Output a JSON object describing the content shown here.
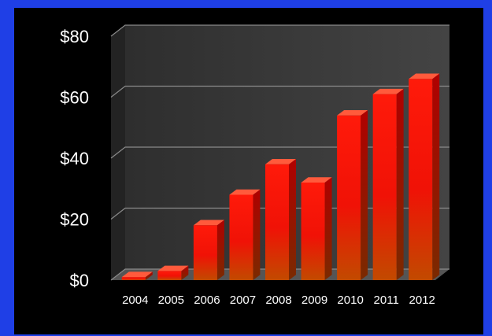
{
  "chart_data": {
    "type": "bar",
    "categories": [
      "2004",
      "2005",
      "2006",
      "2007",
      "2008",
      "2009",
      "2010",
      "2011",
      "2012"
    ],
    "values": [
      1,
      3,
      18,
      28,
      38,
      32,
      54,
      61,
      66
    ],
    "title": "",
    "xlabel": "",
    "ylabel": "",
    "ylim": [
      0,
      80
    ],
    "yticks": [
      0,
      20,
      40,
      60,
      80
    ],
    "ytick_labels": [
      "$0",
      "$20",
      "$40",
      "$60",
      "$80"
    ],
    "grid": true,
    "style": "3d",
    "colors": {
      "bar_top": "#ff1a0a",
      "bar_bottom": "#c24a00",
      "plot_background": "#3a3a3a",
      "page_background": "#000000",
      "slide_background": "#1f3fe6"
    }
  }
}
